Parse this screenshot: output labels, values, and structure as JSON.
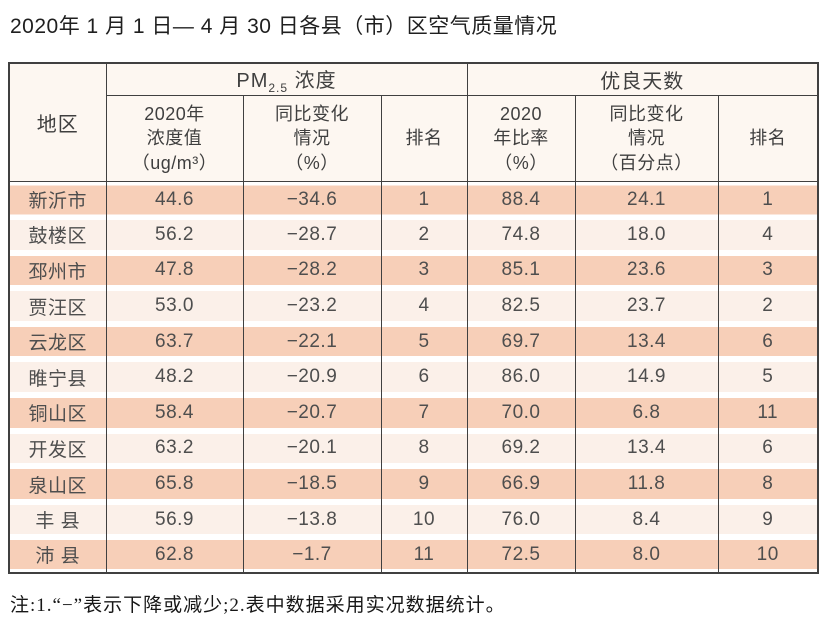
{
  "title": "2020年 1 月 1 日— 4 月 30 日各县（市）区空气质量情况",
  "colors": {
    "border": "#404040",
    "header_bg": "#fdf7f1",
    "row_odd": "#f7cfb8",
    "row_even": "#fbf0e9",
    "title_text": "#1f1f1f",
    "cell_text": "#4e4e4e",
    "header_text": "#3f3f3f"
  },
  "table": {
    "region_header": "地区",
    "group_headers": {
      "pm": {
        "prefix": "PM",
        "sub": "2.5",
        "suffix": " 浓度"
      },
      "good_days": "优良天数"
    },
    "sub_headers": [
      "2020年\n浓度值\n（ug/m³）",
      "同比变化\n情况\n（%）",
      "排名",
      "2020\n年比率\n（%）",
      "同比变化\n情况\n（百分点）",
      "排名"
    ],
    "rows": [
      [
        "新沂市",
        "44.6",
        "−34.6",
        "1",
        "88.4",
        "24.1",
        "1"
      ],
      [
        "鼓楼区",
        "56.2",
        "−28.7",
        "2",
        "74.8",
        "18.0",
        "4"
      ],
      [
        "邳州市",
        "47.8",
        "−28.2",
        "3",
        "85.1",
        "23.6",
        "3"
      ],
      [
        "贾汪区",
        "53.0",
        "−23.2",
        "4",
        "82.5",
        "23.7",
        "2"
      ],
      [
        "云龙区",
        "63.7",
        "−22.1",
        "5",
        "69.7",
        "13.4",
        "6"
      ],
      [
        "睢宁县",
        "48.2",
        "−20.9",
        "6",
        "86.0",
        "14.9",
        "5"
      ],
      [
        "铜山区",
        "58.4",
        "−20.7",
        "7",
        "70.0",
        "6.8",
        "11"
      ],
      [
        "开发区",
        "63.2",
        "−20.1",
        "8",
        "69.2",
        "13.4",
        "6"
      ],
      [
        "泉山区",
        "65.8",
        "−18.5",
        "9",
        "66.9",
        "11.8",
        "8"
      ],
      [
        "丰 县",
        "56.9",
        "−13.8",
        "10",
        "76.0",
        "8.4",
        "9"
      ],
      [
        "沛 县",
        "62.8",
        "−1.7",
        "11",
        "72.5",
        "8.0",
        "10"
      ]
    ]
  },
  "note": "注:1.“−”表示下降或减少;2.表中数据采用实况数据统计。"
}
